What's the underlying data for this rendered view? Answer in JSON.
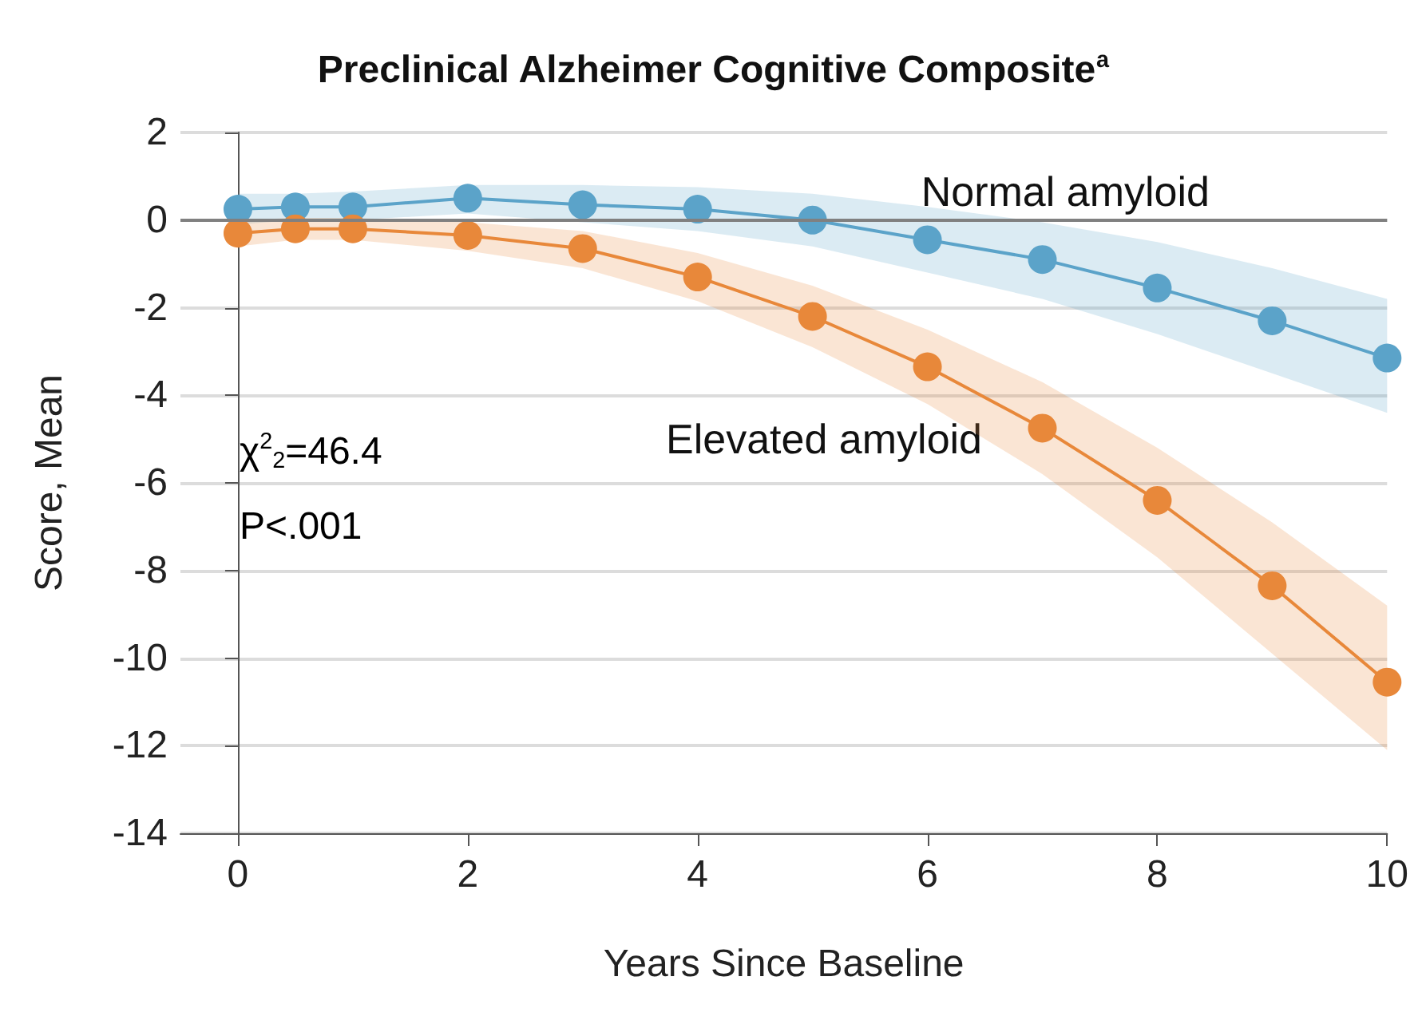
{
  "chart_data": {
    "type": "line",
    "title": "Preclinical Alzheimer Cognitive Composite$^{a}$",
    "xlabel": "Years Since Baseline",
    "ylabel": "Score, Mean",
    "x": [
      0,
      0.5,
      1,
      2,
      3,
      4,
      5,
      6,
      7,
      8,
      9,
      10
    ],
    "xlim": [
      -0.5,
      10
    ],
    "xticks": [
      0,
      2,
      4,
      6,
      8,
      10
    ],
    "ylim": [
      -14,
      2
    ],
    "yticks": [
      -14,
      -12,
      -10,
      -8,
      -6,
      -4,
      -2,
      0,
      2
    ],
    "grid": "y",
    "legend": false,
    "marker": "circle",
    "line_style": "solid",
    "ref_lines": [
      {
        "axis": "y",
        "value": 0,
        "label": null,
        "color": "#808080"
      }
    ],
    "annotations": [
      "χ$^{2}$$_{2}$=46.4",
      "P<.001"
    ],
    "series": [
      {
        "name": "Normal amyloid",
        "color": "#5ba3c9",
        "values": [
          0.25,
          0.3,
          0.3,
          0.5,
          0.35,
          0.25,
          0,
          -0.45,
          -0.9,
          -1.55,
          -2.3,
          -3.15
        ],
        "upper": [
          0.6,
          0.6,
          0.65,
          0.8,
          0.8,
          0.75,
          0.6,
          0.3,
          -0.05,
          -0.5,
          -1.1,
          -1.8
        ],
        "lower": [
          -0.1,
          0,
          0,
          0.15,
          -0.05,
          -0.25,
          -0.6,
          -1.2,
          -1.8,
          -2.6,
          -3.5,
          -4.4
        ]
      },
      {
        "name": "Elevated amyloid",
        "color": "#e8883a",
        "values": [
          -0.3,
          -0.2,
          -0.2,
          -0.35,
          -0.65,
          -1.3,
          -2.2,
          -3.35,
          -4.75,
          -6.4,
          -8.35,
          -10.55
        ],
        "upper": [
          0,
          0.05,
          0.05,
          -0.05,
          -0.25,
          -0.75,
          -1.5,
          -2.5,
          -3.7,
          -5.2,
          -6.9,
          -8.8
        ],
        "lower": [
          -0.6,
          -0.45,
          -0.45,
          -0.7,
          -1.1,
          -1.85,
          -2.9,
          -4.2,
          -5.8,
          -7.7,
          -9.9,
          -12.1
        ]
      }
    ]
  }
}
